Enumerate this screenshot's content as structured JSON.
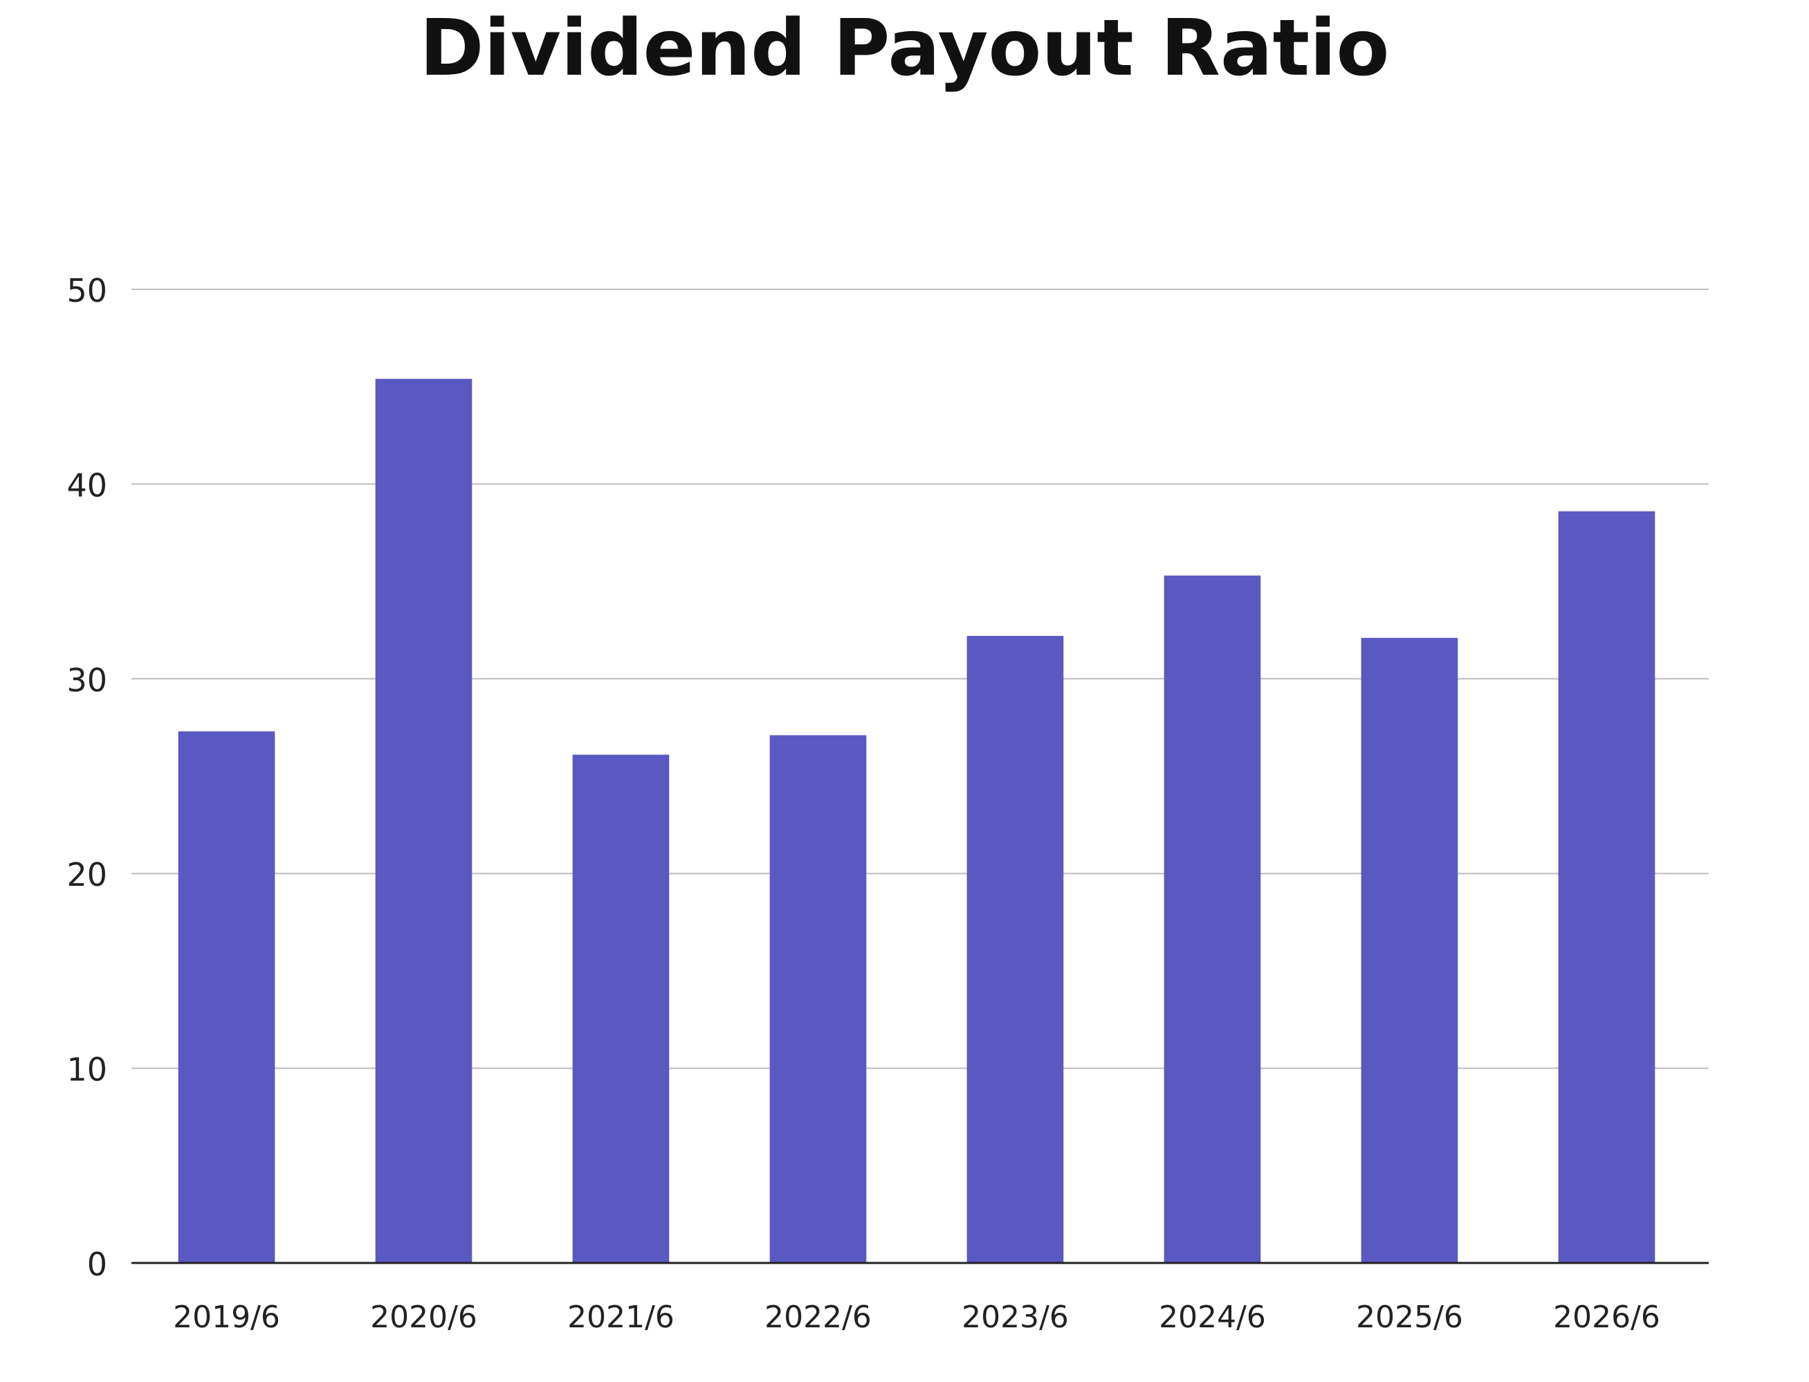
{
  "chart_data": {
    "type": "bar",
    "title": "Dividend Payout Ratio",
    "xlabel": "",
    "ylabel": "",
    "categories": [
      "2019/6",
      "2020/6",
      "2021/6",
      "2022/6",
      "2023/6",
      "2024/6",
      "2025/6",
      "2026/6"
    ],
    "values": [
      27.3,
      45.4,
      26.1,
      27.1,
      32.2,
      35.3,
      32.1,
      38.6
    ],
    "ylim": [
      0,
      50
    ],
    "yticks": [
      0,
      10,
      20,
      30,
      40,
      50
    ],
    "grid": true,
    "legend": "none",
    "colors": {
      "bar": "#5a58c1",
      "grid": "#bdbdbd",
      "axis": "#222222"
    }
  }
}
